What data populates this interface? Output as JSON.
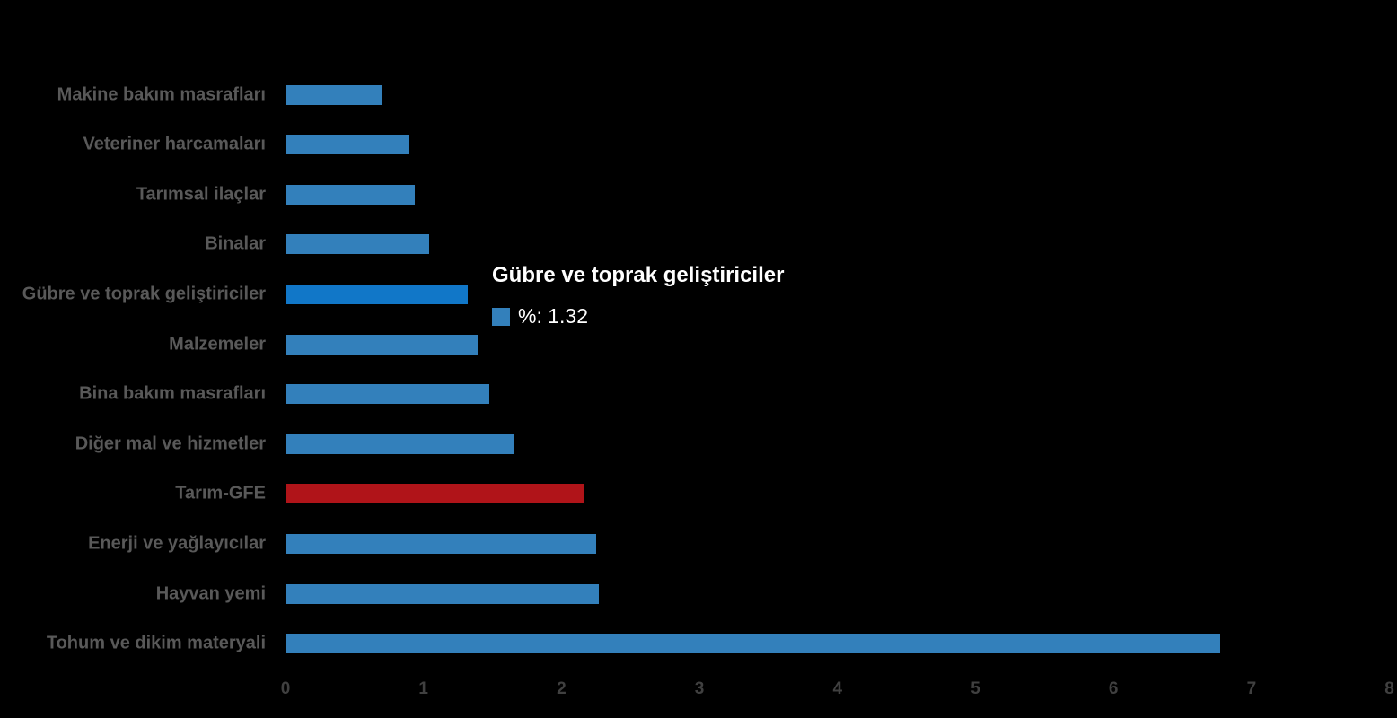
{
  "chart_data": {
    "type": "bar",
    "orientation": "horizontal",
    "title": "",
    "xlabel": "",
    "ylabel": "",
    "xlim": [
      0,
      8
    ],
    "xticks": [
      "0",
      "1",
      "2",
      "3",
      "4",
      "5",
      "6",
      "7",
      "8"
    ],
    "grid": false,
    "legend_position": "none",
    "series_name": "%",
    "categories": [
      "Makine bakım masrafları",
      "Veteriner harcamaları",
      "Tarımsal ilaçlar",
      "Binalar",
      "Gübre ve toprak geliştiriciler",
      "Malzemeler",
      "Bina bakım masrafları",
      "Diğer mal ve hizmetler",
      "Tarım-GFE",
      "Enerji  ve yağlayıcılar",
      "Hayvan yemi",
      "Tohum ve dikim materyali"
    ],
    "values": [
      0.7,
      0.9,
      0.94,
      1.04,
      1.32,
      1.39,
      1.48,
      1.65,
      2.16,
      2.25,
      2.27,
      6.77
    ],
    "bar_colors": [
      "#3380BB",
      "#3380BB",
      "#3380BB",
      "#3380BB",
      "#1177C8",
      "#3380BB",
      "#3380BB",
      "#3380BB",
      "#B01419",
      "#3380BB",
      "#3380BB",
      "#3380BB"
    ],
    "highlighted_index": 4
  },
  "tooltip": {
    "title": "Gübre ve toprak geliştiriciler",
    "value_text": "%: 1.32",
    "marker_color": "#3380BB"
  },
  "colors": {
    "background": "#000000",
    "bar_default": "#3380BB",
    "bar_highlight": "#1177C8",
    "bar_gfe_red": "#B01419",
    "category_label": "#595959",
    "axis_label": "#404040",
    "tooltip_text": "#FFFFFF"
  }
}
